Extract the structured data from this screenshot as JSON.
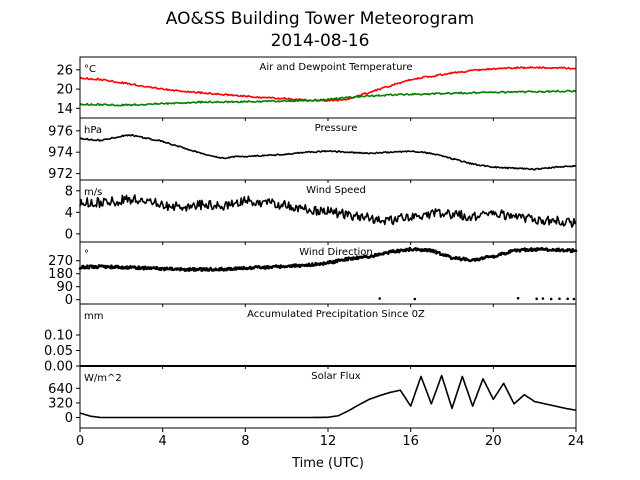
{
  "figure": {
    "title": "AO&SS Building Tower Meteorogram",
    "subtitle": "2014-08-16",
    "xlabel": "Time (UTC)"
  },
  "chart_data": [
    {
      "type": "line",
      "title": "Air and Dewpoint Temperature",
      "unit": "°C",
      "ylim": [
        11,
        30
      ],
      "yticks": [
        14,
        20,
        26
      ],
      "xlim": [
        0,
        24
      ],
      "series": [
        {
          "color": "#ff0000",
          "x": [
            0,
            1,
            2,
            3,
            4,
            5,
            6,
            7,
            8,
            9,
            10,
            11,
            12,
            12.5,
            13,
            14,
            15,
            16,
            17,
            18,
            19,
            20,
            21,
            22,
            23,
            24
          ],
          "y": [
            23.5,
            23,
            22,
            21,
            20,
            19.3,
            18.8,
            18.3,
            17.8,
            17.3,
            17,
            16.6,
            16.4,
            16.6,
            17,
            19,
            21,
            23,
            24,
            25,
            25.8,
            26.3,
            26.6,
            26.8,
            26.6,
            26.5
          ]
        },
        {
          "color": "#008000",
          "x": [
            0,
            1,
            2,
            3,
            4,
            5,
            6,
            7,
            8,
            9,
            10,
            11,
            12,
            13,
            14,
            15,
            16,
            17,
            18,
            19,
            20,
            21,
            22,
            23,
            24
          ],
          "y": [
            15.3,
            15.2,
            15,
            15.2,
            15.5,
            15.7,
            16,
            16,
            16.1,
            16.2,
            16.3,
            16.4,
            16.8,
            17.4,
            17.9,
            18.2,
            18.4,
            18.5,
            18.7,
            18.9,
            19,
            19.1,
            19.2,
            19.3,
            19.4
          ]
        }
      ]
    },
    {
      "type": "line",
      "title": "Pressure",
      "unit": "hPa",
      "ylim": [
        971.4,
        977.2
      ],
      "yticks": [
        972,
        974,
        976
      ],
      "xlim": [
        0,
        24
      ],
      "series": [
        {
          "color": "#000000",
          "x": [
            0,
            1,
            2,
            2.5,
            3,
            4,
            5,
            6,
            7,
            7.5,
            8,
            9,
            10,
            11,
            12,
            13,
            14,
            15,
            16,
            17,
            18,
            19,
            20,
            21,
            22,
            23,
            24
          ],
          "y": [
            975.3,
            975.1,
            975.5,
            975.6,
            975.4,
            975,
            974.4,
            973.8,
            973.4,
            973.6,
            973.6,
            973.7,
            973.8,
            974,
            974.1,
            974,
            973.9,
            974,
            974.1,
            973.9,
            973.4,
            972.9,
            972.6,
            972.5,
            972.4,
            972.6,
            972.7
          ]
        }
      ]
    },
    {
      "type": "line",
      "title": "Wind Speed",
      "unit": "m/s",
      "ylim": [
        -1.5,
        10
      ],
      "yticks": [
        0,
        4,
        8
      ],
      "xlim": [
        0,
        24
      ],
      "series": [
        {
          "color": "#000000",
          "x": [
            0,
            1,
            2,
            3,
            4,
            5,
            6,
            7,
            8,
            9,
            10,
            11,
            12,
            13,
            14,
            15,
            16,
            17,
            18,
            19,
            20,
            21,
            22,
            23,
            24
          ],
          "y": [
            6,
            5.8,
            6.2,
            6.5,
            5.2,
            5,
            5.5,
            5.2,
            6.2,
            5.8,
            5.2,
            4.5,
            4.2,
            3.5,
            3,
            2.5,
            3.2,
            3.8,
            3.6,
            3.3,
            3.8,
            3.2,
            2.7,
            2.4,
            2.1
          ]
        }
      ]
    },
    {
      "type": "scatter",
      "title": "Wind Direction",
      "unit": "°",
      "ylim": [
        -30,
        400
      ],
      "yticks": [
        0,
        90,
        180,
        270
      ],
      "xlim": [
        0,
        24
      ],
      "series": [
        {
          "color": "#000000",
          "x": [
            0,
            1,
            2,
            3,
            4,
            5,
            6,
            7,
            8,
            9,
            10,
            11,
            12,
            13,
            14,
            15,
            16,
            17,
            18,
            19,
            20,
            21,
            22,
            23,
            24
          ],
          "y": [
            225,
            230,
            225,
            220,
            215,
            210,
            210,
            212,
            218,
            225,
            232,
            240,
            255,
            285,
            300,
            330,
            350,
            340,
            290,
            275,
            300,
            340,
            350,
            345,
            340
          ]
        },
        {
          "color": "#000000",
          "x": [
            14.5,
            16.2,
            21.2,
            22.1,
            22.4,
            22.8,
            23.2,
            23.6,
            23.9
          ],
          "y": [
            8,
            5,
            10,
            6,
            8,
            5,
            7,
            6,
            5
          ]
        }
      ]
    },
    {
      "type": "line",
      "title": "Accumulated Precipitation Since 0Z",
      "unit": "mm",
      "ylim": [
        0,
        0.2
      ],
      "yticks": [
        0.0,
        0.05,
        0.1
      ],
      "ytick_labels": [
        "0.00",
        "0.05",
        "0.10"
      ],
      "xlim": [
        0,
        24
      ],
      "series": [
        {
          "color": "#000000",
          "x": [
            0,
            24
          ],
          "y": [
            0,
            0
          ]
        }
      ]
    },
    {
      "type": "line",
      "title": "Solar Flux",
      "unit": "W/m^2",
      "ylim": [
        -230,
        1130
      ],
      "yticks": [
        0,
        320,
        640
      ],
      "xlim": [
        0,
        24
      ],
      "xticks": [
        0,
        4,
        8,
        12,
        16,
        20,
        24
      ],
      "series": [
        {
          "color": "#000000",
          "x": [
            0,
            0.5,
            1,
            2,
            4,
            6,
            8,
            10,
            11,
            12,
            12.5,
            13,
            13.5,
            14,
            14.5,
            15,
            15.5,
            16,
            16.5,
            17,
            17.5,
            18,
            18.5,
            19,
            19.5,
            20,
            20.5,
            21,
            21.5,
            22,
            22.5,
            23,
            23.5,
            24
          ],
          "y": [
            100,
            30,
            0,
            0,
            0,
            0,
            0,
            0,
            0,
            5,
            40,
            150,
            280,
            400,
            480,
            550,
            600,
            250,
            900,
            300,
            920,
            200,
            900,
            250,
            850,
            400,
            750,
            300,
            500,
            350,
            300,
            250,
            200,
            160
          ]
        }
      ]
    }
  ]
}
